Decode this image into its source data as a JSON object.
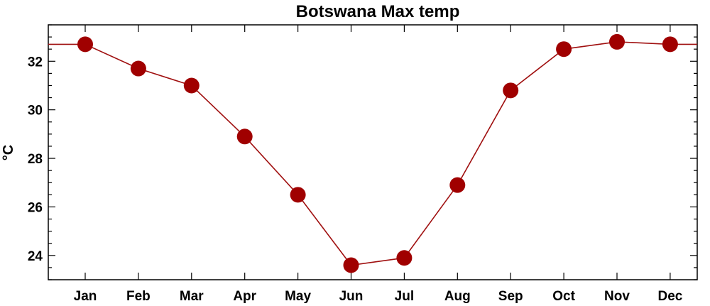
{
  "chart_data": {
    "type": "line",
    "title": "Botswana Max temp",
    "xlabel": "",
    "ylabel": "°C",
    "categories": [
      "Jan",
      "Feb",
      "Mar",
      "Apr",
      "May",
      "Jun",
      "Jul",
      "Aug",
      "Sep",
      "Oct",
      "Nov",
      "Dec"
    ],
    "series": [
      {
        "values": [
          32.7,
          31.7,
          31.0,
          28.9,
          26.5,
          23.6,
          23.9,
          26.9,
          30.8,
          32.5,
          32.8,
          32.7
        ]
      }
    ],
    "ylim": [
      23.0,
      33.5
    ],
    "yticks": [
      24,
      26,
      28,
      30,
      32
    ],
    "grid": false,
    "legend": false,
    "colors": {
      "line": "#a01010",
      "marker": "#a00000"
    }
  }
}
